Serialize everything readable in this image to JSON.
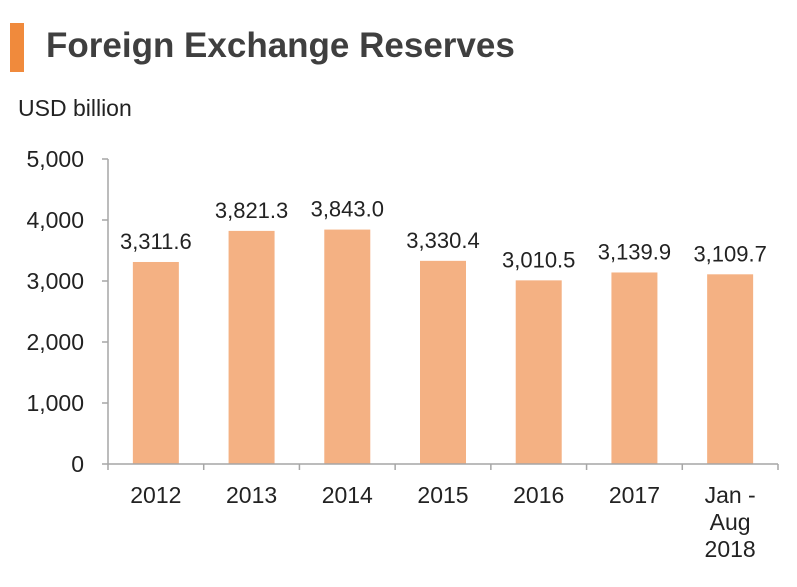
{
  "header": {
    "title": "Foreign Exchange Reserves",
    "accent_color": "#f08a3c"
  },
  "chart_data": {
    "type": "bar",
    "title": "Foreign Exchange Reserves",
    "ylabel": "USD billion",
    "xlabel": "",
    "categories": [
      [
        "2012"
      ],
      [
        "2013"
      ],
      [
        "2014"
      ],
      [
        "2015"
      ],
      [
        "2016"
      ],
      [
        "2017"
      ],
      [
        "Jan -",
        "Aug",
        "2018"
      ]
    ],
    "values": [
      3311.6,
      3821.3,
      3843.0,
      3330.4,
      3010.5,
      3139.9,
      3109.7
    ],
    "value_labels": [
      "3,311.6",
      "3,821.3",
      "3,843.0",
      "3,330.4",
      "3,010.5",
      "3,139.9",
      "3,109.7"
    ],
    "ylim": [
      0,
      5000
    ],
    "yticks": [
      0,
      1000,
      2000,
      3000,
      4000,
      5000
    ],
    "ytick_labels": [
      "0",
      "1,000",
      "2,000",
      "3,000",
      "4,000",
      "5,000"
    ],
    "bar_color": "#f4b183",
    "axis_color": "#a6a6a6",
    "grid": false,
    "legend": "none"
  }
}
